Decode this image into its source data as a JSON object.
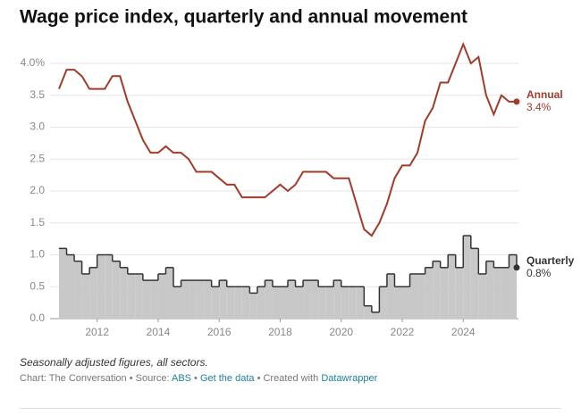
{
  "chart_data": {
    "type": "line",
    "title": "Wage price index, quarterly and annual movement",
    "note": "Seasonally adjusted figures, all sectors.",
    "credits": {
      "chart": "Chart: The Conversation",
      "source_label": "Source:",
      "source": "ABS",
      "get_data": "Get the data",
      "created_with": "Created with",
      "tool": "Datawrapper"
    },
    "x": [
      2010.75,
      2011,
      2011.25,
      2011.5,
      2011.75,
      2012,
      2012.25,
      2012.5,
      2012.75,
      2013,
      2013.25,
      2013.5,
      2013.75,
      2014,
      2014.25,
      2014.5,
      2014.75,
      2015,
      2015.25,
      2015.5,
      2015.75,
      2016,
      2016.25,
      2016.5,
      2016.75,
      2017,
      2017.25,
      2017.5,
      2017.75,
      2018,
      2018.25,
      2018.5,
      2018.75,
      2019,
      2019.25,
      2019.5,
      2019.75,
      2020,
      2020.25,
      2020.5,
      2020.75,
      2021,
      2021.25,
      2021.5,
      2021.75,
      2022,
      2022.25,
      2022.5,
      2022.75,
      2023,
      2023.25,
      2023.5,
      2023.75,
      2024,
      2024.25,
      2024.5,
      2024.75,
      2025,
      2025.25,
      2025.5,
      2025.75
    ],
    "xlim": [
      2010.75,
      2025.75
    ],
    "xticks": [
      2012,
      2014,
      2016,
      2018,
      2020,
      2022,
      2024
    ],
    "ylim": [
      0,
      4
    ],
    "yticks": [
      {
        "value": 0,
        "label": "0.0"
      },
      0.5,
      {
        "value": 1,
        "label": "1.0"
      },
      1.5,
      {
        "value": 2,
        "label": "2.0"
      },
      2.5,
      {
        "value": 3,
        "label": "3.0"
      },
      3.5,
      {
        "value": 4,
        "label": "4.0%"
      }
    ],
    "grid": true,
    "series": [
      {
        "name": "Annual",
        "color": "#a33b2b",
        "step": false,
        "values": [
          3.6,
          3.9,
          3.9,
          3.8,
          3.6,
          3.6,
          3.6,
          3.8,
          3.8,
          3.4,
          3.1,
          2.8,
          2.6,
          2.6,
          2.7,
          2.6,
          2.6,
          2.5,
          2.3,
          2.3,
          2.3,
          2.2,
          2.1,
          2.1,
          1.9,
          1.9,
          1.9,
          1.9,
          2.0,
          2.1,
          2.0,
          2.1,
          2.3,
          2.3,
          2.3,
          2.3,
          2.2,
          2.2,
          2.2,
          1.8,
          1.4,
          1.3,
          1.5,
          1.8,
          2.2,
          2.4,
          2.4,
          2.6,
          3.1,
          3.3,
          3.7,
          3.7,
          4.0,
          4.3,
          4.0,
          4.1,
          3.5,
          3.2,
          3.5,
          3.4,
          3.4
        ],
        "value_labels": [
          null,
          null,
          null,
          null,
          null,
          null,
          null,
          null,
          null,
          null,
          null,
          null,
          null,
          null,
          null,
          null,
          null,
          null,
          null,
          null,
          null,
          null,
          null,
          null,
          null,
          null,
          null,
          null,
          null,
          null,
          null,
          null,
          null,
          null,
          null,
          null,
          null,
          null,
          null,
          null,
          null,
          null,
          null,
          null,
          null,
          null,
          null,
          null,
          null,
          null,
          null,
          null,
          null,
          null,
          null,
          null,
          null,
          null,
          null,
          null,
          "3.4%"
        ]
      },
      {
        "name": "Quarterly",
        "color": "#333333",
        "fill": "#c8c8c8",
        "step": true,
        "values": [
          1.1,
          1.0,
          0.9,
          0.7,
          0.8,
          1.0,
          1.0,
          0.9,
          0.8,
          0.7,
          0.7,
          0.6,
          0.6,
          0.7,
          0.8,
          0.5,
          0.6,
          0.6,
          0.6,
          0.6,
          0.5,
          0.6,
          0.5,
          0.5,
          0.5,
          0.4,
          0.5,
          0.6,
          0.5,
          0.5,
          0.6,
          0.5,
          0.6,
          0.6,
          0.5,
          0.5,
          0.6,
          0.5,
          0.5,
          0.5,
          0.2,
          0.1,
          0.5,
          0.7,
          0.5,
          0.5,
          0.7,
          0.7,
          0.8,
          0.9,
          0.8,
          1.0,
          0.8,
          1.3,
          1.1,
          0.7,
          0.9,
          0.8,
          0.8,
          1.0,
          0.8
        ],
        "value_labels": [
          null,
          null,
          null,
          null,
          null,
          null,
          null,
          null,
          null,
          null,
          null,
          null,
          null,
          null,
          null,
          null,
          null,
          null,
          null,
          null,
          null,
          null,
          null,
          null,
          null,
          null,
          null,
          null,
          null,
          null,
          null,
          null,
          null,
          null,
          null,
          null,
          null,
          null,
          null,
          null,
          null,
          null,
          null,
          null,
          null,
          null,
          null,
          null,
          null,
          null,
          null,
          null,
          null,
          null,
          null,
          null,
          null,
          null,
          null,
          null,
          "0.8%"
        ]
      }
    ]
  }
}
